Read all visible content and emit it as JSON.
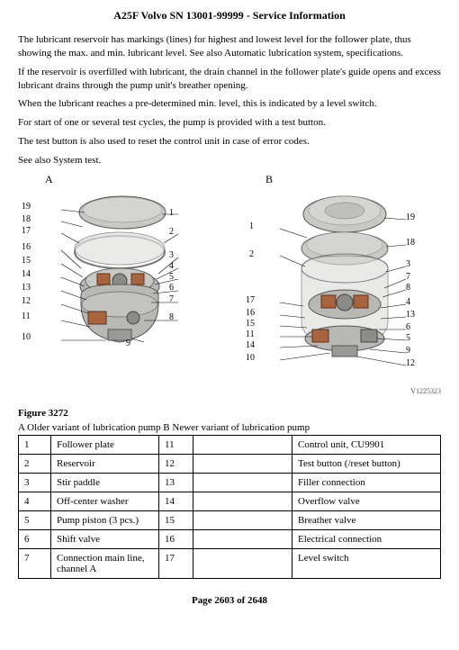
{
  "header": "A25F Volvo SN 13001-99999 - Service Information",
  "paragraphs": {
    "p1": "The lubricant reservoir has markings (lines) for highest and lowest level for the follower plate, thus showing the max. and min. lubricant level. See also Automatic lubrication system, specifications.",
    "p2": "If the reservoir is overfilled with lubricant, the drain channel in the follower plate's guide opens and excess lubricant drains through the pump unit's breather opening.",
    "p3": "When the lubricant reaches a pre-determined min. level, this is indicated by a level switch.",
    "p4": "For start of one or several test cycles, the pump is provided with a test button.",
    "p5": "The test button is also used to reset the control unit in case of error codes.",
    "p6": "See also System test."
  },
  "figure": {
    "labelA": "A",
    "labelB": "B",
    "imageId": "V1225323",
    "number": "Figure 3272",
    "caption": "A Older variant of lubrication pump B Newer variant of lubrication pump",
    "calloutsA_left": [
      "19",
      "18",
      "17",
      "16",
      "15",
      "14",
      "13",
      "12",
      "11",
      "10"
    ],
    "calloutsA_right": [
      "1",
      "2",
      "3",
      "4",
      "5",
      "6",
      "7",
      "8",
      "9"
    ],
    "calloutsB_left": [
      "1",
      "2",
      "17",
      "16",
      "15",
      "11",
      "14",
      "10"
    ],
    "calloutsB_right": [
      "19",
      "18",
      "3",
      "7",
      "8",
      "4",
      "13",
      "6",
      "5",
      "9",
      "12"
    ]
  },
  "table": {
    "rows": [
      {
        "n1": "1",
        "name1": "Follower plate",
        "n2": "11",
        "blank": "",
        "name2": "Control unit, CU9901"
      },
      {
        "n1": "2",
        "name1": "Reservoir",
        "n2": "12",
        "blank": "",
        "name2": "Test button (/reset button)"
      },
      {
        "n1": "3",
        "name1": "Stir paddle",
        "n2": "13",
        "blank": "",
        "name2": "Filler connection"
      },
      {
        "n1": "4",
        "name1": "Off-center washer",
        "n2": "14",
        "blank": "",
        "name2": "Overflow valve"
      },
      {
        "n1": "5",
        "name1": "Pump piston (3 pcs.)",
        "n2": "15",
        "blank": "",
        "name2": "Breather valve"
      },
      {
        "n1": "6",
        "name1": "Shift valve",
        "n2": "16",
        "blank": "",
        "name2": "Electrical connection"
      },
      {
        "n1": "7",
        "name1": "Connection main line, channel A",
        "n2": "17",
        "blank": "",
        "name2": "Level switch"
      }
    ]
  },
  "footer": "Page 2603 of 2648",
  "colors": {
    "lid": "#c8c9c5",
    "body": "#b8b9b5",
    "gear": "#8b8c88",
    "accent": "#a8643e",
    "false_": "#4a4b47"
  }
}
